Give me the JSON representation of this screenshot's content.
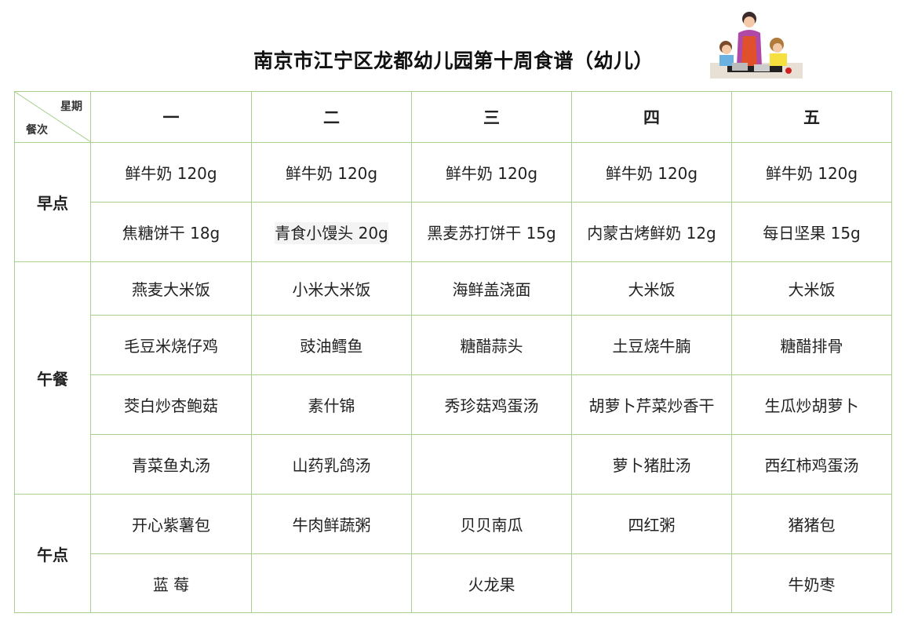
{
  "title": "南京市江宁区龙都幼儿园第十周食谱（幼儿）",
  "illustration": "mother-cooking-with-children-icon",
  "border_color": "#a9d08e",
  "corner": {
    "top_right": "星期",
    "bottom_left": "餐次"
  },
  "days": [
    "一",
    "二",
    "三",
    "四",
    "五"
  ],
  "meals": [
    {
      "name": "早点",
      "rows": [
        [
          "鲜牛奶 120g",
          "鲜牛奶 120g",
          "鲜牛奶 120g",
          "鲜牛奶 120g",
          "鲜牛奶 120g"
        ],
        [
          "焦糖饼干 18g",
          "青食小馒头 20g",
          "黑麦苏打饼干 15g",
          "内蒙古烤鲜奶 12g",
          "每日坚果 15g"
        ]
      ]
    },
    {
      "name": "午餐",
      "rows": [
        [
          "燕麦大米饭",
          "小米大米饭",
          "海鲜盖浇面",
          "大米饭",
          "大米饭"
        ],
        [
          "毛豆米烧仔鸡",
          "豉油鳕鱼",
          "糖醋蒜头",
          "土豆烧牛腩",
          "糖醋排骨"
        ],
        [
          "茭白炒杏鲍菇",
          "素什锦",
          "秀珍菇鸡蛋汤",
          "胡萝卜芹菜炒香干",
          "生瓜炒胡萝卜"
        ],
        [
          "青菜鱼丸汤",
          "山药乳鸽汤",
          "",
          "萝卜猪肚汤",
          "西红柿鸡蛋汤"
        ]
      ]
    },
    {
      "name": "午点",
      "rows": [
        [
          "开心紫薯包",
          "牛肉鲜蔬粥",
          "贝贝南瓜",
          "四红粥",
          "猪猪包"
        ],
        [
          "蓝  莓",
          "",
          "火龙果",
          "",
          "牛奶枣"
        ]
      ]
    }
  ]
}
